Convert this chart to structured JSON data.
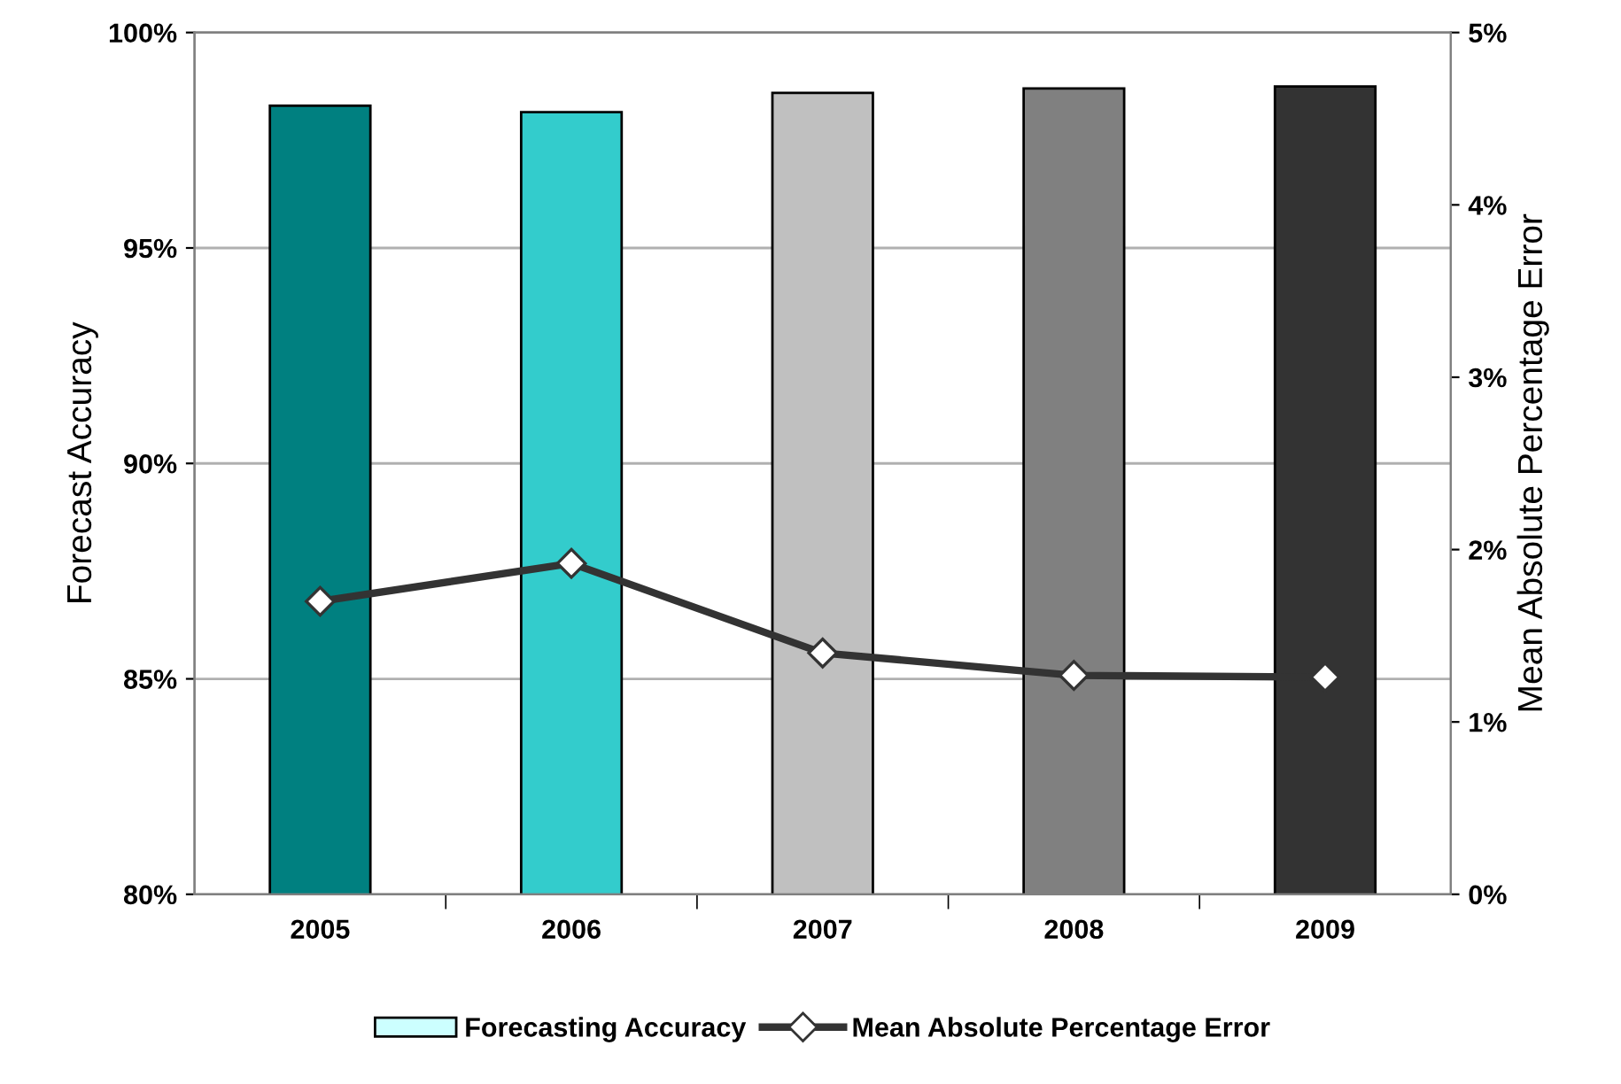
{
  "chart_data": {
    "type": "bar",
    "categories": [
      "2005",
      "2006",
      "2007",
      "2008",
      "2009"
    ],
    "ylabel": "Forecast Accuracy",
    "y2label": "Mean Absolute Percentage Error",
    "ylim": [
      80,
      100
    ],
    "yticks": [
      {
        "value": 80,
        "label": "80%"
      },
      {
        "value": 85,
        "label": "85%"
      },
      {
        "value": 90,
        "label": "90%"
      },
      {
        "value": 95,
        "label": "95%"
      },
      {
        "value": 100,
        "label": "100%"
      }
    ],
    "y2lim": [
      0,
      5
    ],
    "y2ticks": [
      {
        "value": 0,
        "label": "0%"
      },
      {
        "value": 1,
        "label": "1%"
      },
      {
        "value": 2,
        "label": "2%"
      },
      {
        "value": 3,
        "label": "3%"
      },
      {
        "value": 4,
        "label": "4%"
      },
      {
        "value": 5,
        "label": "5%"
      }
    ],
    "grid": "y",
    "legend": "bottom",
    "series": [
      {
        "name": "Forecasting Accuracy",
        "color": "#ccffff",
        "colors": [
          "#008080",
          "#33cccc",
          "#c0c0c0",
          "#808080",
          "#333333"
        ],
        "values": [
          98.3,
          98.15,
          98.6,
          98.7,
          98.75
        ]
      },
      {
        "name": "Mean Absolute Percentage Error",
        "type": "line",
        "axis": "y2",
        "color": "#333333",
        "marker": "diamond",
        "line_style": "solid",
        "values": [
          1.7,
          1.92,
          1.4,
          1.27,
          1.26
        ]
      }
    ]
  }
}
